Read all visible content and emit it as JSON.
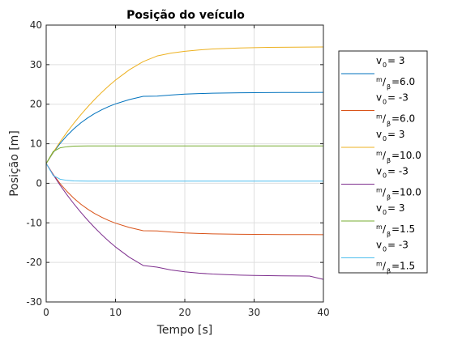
{
  "chart_data": {
    "type": "line",
    "title": "Posição do veículo",
    "xlabel": "Tempo [s]",
    "ylabel": "Posição [m]",
    "xlim": [
      0,
      40
    ],
    "ylim": [
      -30,
      40
    ],
    "xticks": [
      0,
      10,
      20,
      30,
      40
    ],
    "yticks": [
      -30,
      -20,
      -10,
      0,
      10,
      20,
      30,
      40
    ],
    "grid": true,
    "legend_placement": "outside-right",
    "x": [
      0,
      1,
      2,
      3,
      4,
      5,
      6,
      7,
      8,
      9,
      10,
      12,
      14,
      16,
      18,
      20,
      22,
      24,
      26,
      28,
      30,
      32,
      34,
      36,
      38,
      40
    ],
    "series": [
      {
        "legend": {
          "v_line": "v",
          "v_sub": "0",
          "v_value": " = 3",
          "m_sup": "m",
          "m_slash": "/",
          "beta_sub": "β",
          "m_value": "=6.0"
        },
        "color": "#0072bd",
        "values": [
          5.0,
          7.71,
          10.06,
          12.07,
          13.8,
          15.28,
          16.55,
          17.65,
          18.58,
          19.39,
          20.08,
          21.17,
          21.98,
          22.03,
          22.33,
          22.54,
          22.67,
          22.77,
          22.84,
          22.88,
          22.91,
          22.94,
          22.95,
          22.96,
          22.97,
          22.98
        ]
      },
      {
        "legend": {
          "v_line": "v",
          "v_sub": "0",
          "v_value": " = -3",
          "m_sup": "m",
          "m_slash": "/",
          "beta_sub": "β",
          "m_value": "=6.0"
        },
        "color": "#d95319",
        "values": [
          5.0,
          2.29,
          -0.06,
          -2.07,
          -3.8,
          -5.28,
          -6.55,
          -7.65,
          -8.58,
          -9.39,
          -10.08,
          -11.17,
          -11.98,
          -12.03,
          -12.33,
          -12.54,
          -12.67,
          -12.77,
          -12.84,
          -12.88,
          -12.91,
          -12.94,
          -12.95,
          -12.96,
          -12.97,
          -12.98
        ]
      },
      {
        "legend": {
          "v_line": "v",
          "v_sub": "0",
          "v_value": " = 3",
          "m_sup": "m",
          "m_slash": "/",
          "beta_sub": "β",
          "m_value": "=10.0"
        },
        "color": "#edb120",
        "values": [
          5.0,
          7.82,
          10.46,
          12.91,
          15.21,
          17.35,
          19.35,
          21.22,
          22.97,
          24.59,
          26.09,
          28.7,
          30.78,
          32.19,
          32.91,
          33.38,
          33.71,
          33.95,
          34.1,
          34.22,
          34.3,
          34.36,
          34.4,
          34.43,
          34.45,
          34.47
        ]
      },
      {
        "legend": {
          "v_line": "v",
          "v_sub": "0",
          "v_value": " = -3",
          "m_sup": "m",
          "m_slash": "/",
          "beta_sub": "β",
          "m_value": "=10.0"
        },
        "color": "#7e2f8e",
        "values": [
          5.0,
          2.18,
          -0.46,
          -2.91,
          -5.21,
          -7.35,
          -9.35,
          -11.22,
          -12.97,
          -14.59,
          -16.09,
          -18.7,
          -20.78,
          -21.19,
          -21.91,
          -22.38,
          -22.71,
          -22.95,
          -23.1,
          -23.22,
          -23.3,
          -23.36,
          -23.4,
          -23.43,
          -23.45,
          -24.3
        ]
      },
      {
        "legend": {
          "v_line": "v",
          "v_sub": "0",
          "v_value": " = 3",
          "m_sup": "m",
          "m_slash": "/",
          "beta_sub": "β",
          "m_value": "=1.5"
        },
        "color": "#77ac30",
        "values": [
          5.0,
          8.02,
          8.96,
          9.26,
          9.39,
          9.43,
          9.45,
          9.45,
          9.46,
          9.46,
          9.46,
          9.46,
          9.46,
          9.46,
          9.46,
          9.46,
          9.46,
          9.46,
          9.46,
          9.46,
          9.46,
          9.46,
          9.46,
          9.46,
          9.46,
          9.46
        ]
      },
      {
        "legend": {
          "v_line": "v",
          "v_sub": "0",
          "v_value": " = -3",
          "m_sup": "m",
          "m_slash": "/",
          "beta_sub": "β",
          "m_value": "=1.5"
        },
        "color": "#4dbeee",
        "values": [
          5.0,
          1.98,
          1.04,
          0.74,
          0.61,
          0.57,
          0.55,
          0.55,
          0.54,
          0.54,
          0.54,
          0.54,
          0.54,
          0.54,
          0.54,
          0.54,
          0.54,
          0.54,
          0.54,
          0.54,
          0.54,
          0.54,
          0.54,
          0.54,
          0.54,
          0.54
        ]
      }
    ]
  }
}
